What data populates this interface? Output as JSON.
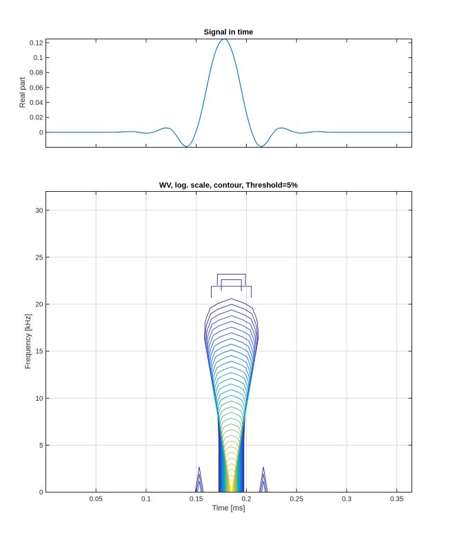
{
  "chart_data": [
    {
      "type": "line",
      "title": "Signal in time",
      "xlabel": "",
      "ylabel": "Real part",
      "xlim": [
        0.0,
        0.365
      ],
      "ylim": [
        -0.02,
        0.125
      ],
      "yticks": [
        0,
        0.02,
        0.04,
        0.06,
        0.08,
        0.1,
        0.12
      ],
      "ytick_labels": [
        "0",
        "0.02",
        "0.04",
        "0.06",
        "0.08",
        "0.1",
        "0.12"
      ],
      "grid": false,
      "line_color": "#0072bd",
      "series": [
        {
          "x": [
            0.0,
            0.01,
            0.02,
            0.03,
            0.04,
            0.05,
            0.06,
            0.07,
            0.08,
            0.085,
            0.09,
            0.095,
            0.1,
            0.105,
            0.11,
            0.115,
            0.12,
            0.125,
            0.13,
            0.135,
            0.14,
            0.145,
            0.15,
            0.155,
            0.16,
            0.165,
            0.17,
            0.175,
            0.18,
            0.185,
            0.19,
            0.195,
            0.2,
            0.205,
            0.21,
            0.215,
            0.22,
            0.225,
            0.23,
            0.235,
            0.24,
            0.245,
            0.25,
            0.255,
            0.26,
            0.265,
            0.27,
            0.275,
            0.28,
            0.285,
            0.29,
            0.3,
            0.31,
            0.32,
            0.33,
            0.34,
            0.35,
            0.365
          ],
          "y": [
            0,
            0,
            0,
            0,
            0,
            0,
            0,
            0.0002,
            0.0008,
            0.001,
            0.0006,
            -0.0005,
            -0.0012,
            -0.0005,
            0.0015,
            0.0045,
            0.0058,
            0.004,
            -0.004,
            -0.014,
            -0.019,
            -0.014,
            0.002,
            0.026,
            0.057,
            0.088,
            0.111,
            0.123,
            0.124,
            0.111,
            0.088,
            0.057,
            0.026,
            0.002,
            -0.014,
            -0.019,
            -0.014,
            -0.004,
            0.004,
            0.0058,
            0.0045,
            0.0015,
            -0.0005,
            -0.0012,
            -0.0005,
            0.0006,
            0.001,
            0.0008,
            0.0002,
            0,
            0,
            0,
            0,
            0,
            0,
            0,
            0,
            0
          ]
        }
      ]
    },
    {
      "type": "contour",
      "title": "WV, log. scale, contour, Threshold=5%",
      "xlabel": "Time [ms]",
      "ylabel": "Frequency [kHz]",
      "xlim": [
        0.0,
        0.365
      ],
      "ylim": [
        0,
        32
      ],
      "xticks": [
        0.05,
        0.1,
        0.15,
        0.2,
        0.25,
        0.3,
        0.35
      ],
      "xtick_labels": [
        "0.05",
        "0.1",
        "0.15",
        "0.2",
        "0.25",
        "0.3",
        "0.35"
      ],
      "yticks": [
        0,
        5,
        10,
        15,
        20,
        25,
        30
      ],
      "ytick_labels": [
        "0",
        "5",
        "10",
        "15",
        "20",
        "25",
        "30"
      ],
      "grid": true,
      "center_time": 0.185,
      "colormap": [
        "#352a87",
        "#2c4bd6",
        "#0f72e3",
        "#1196d1",
        "#0cb1b0",
        "#5dbf81",
        "#b8bc5e",
        "#f0c03a",
        "#f9fb0e"
      ],
      "levels": 34,
      "side_lobes": [
        {
          "t": 0.153,
          "f_max": 2.7
        },
        {
          "t": 0.217,
          "f_max": 2.7
        }
      ]
    }
  ]
}
